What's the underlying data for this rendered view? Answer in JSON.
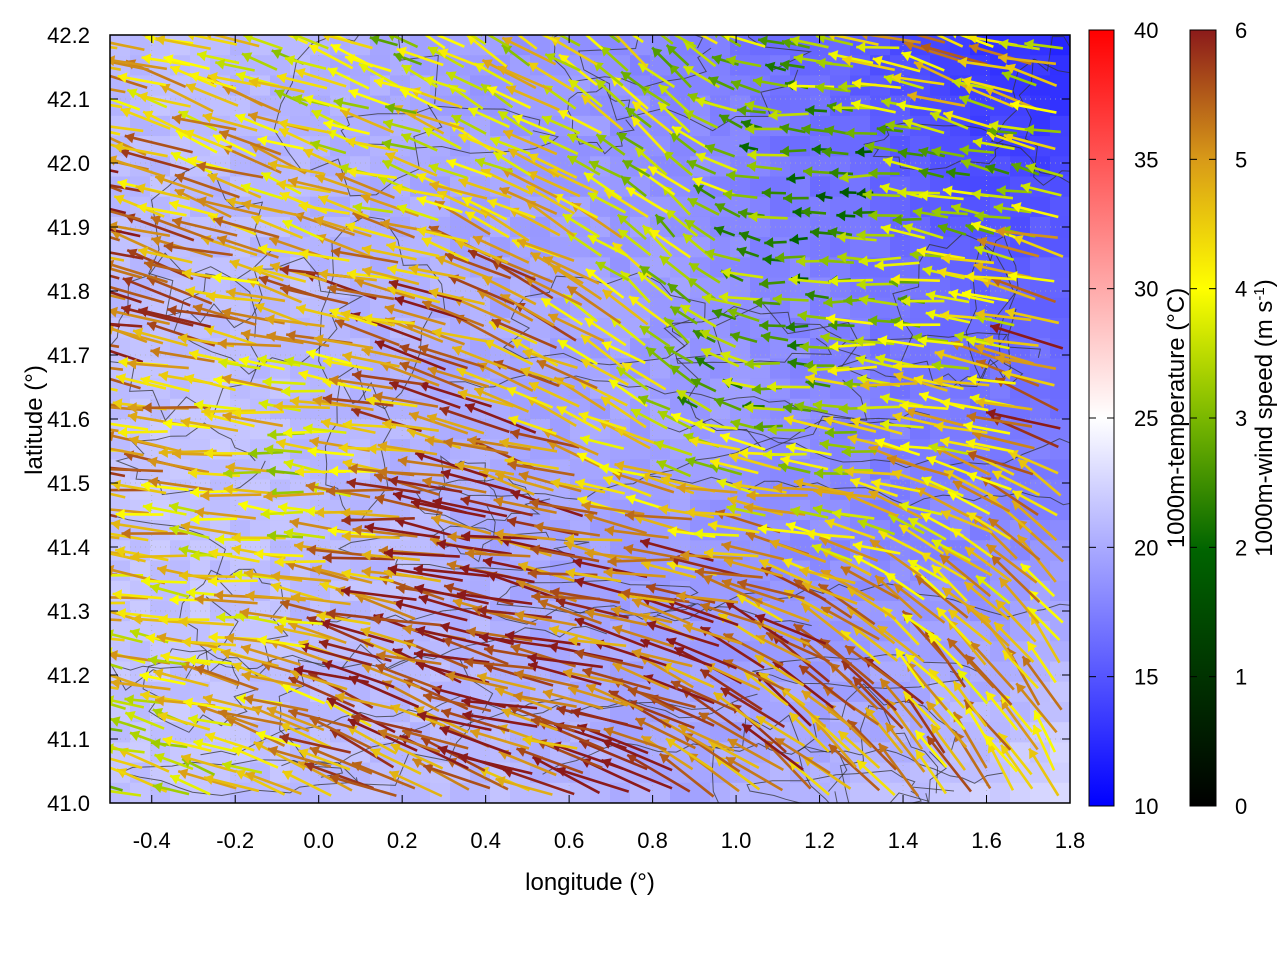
{
  "chart_data": {
    "type": "heatmap",
    "title": "",
    "xlabel": "longitude (°)",
    "ylabel": "latitude (°)",
    "xlim": [
      -0.5,
      1.8
    ],
    "ylim": [
      41.0,
      42.2
    ],
    "x_ticks": [
      "-0.4",
      "-0.2",
      "0.0",
      "0.2",
      "0.4",
      "0.6",
      "0.8",
      "1.0",
      "1.2",
      "1.4",
      "1.6",
      "1.8"
    ],
    "x_tick_values": [
      -0.4,
      -0.2,
      0.0,
      0.2,
      0.4,
      0.6,
      0.8,
      1.0,
      1.2,
      1.4,
      1.6,
      1.8
    ],
    "y_ticks": [
      "41.0",
      "41.1",
      "41.2",
      "41.3",
      "41.4",
      "41.5",
      "41.6",
      "41.7",
      "41.8",
      "41.9",
      "42.0",
      "42.1",
      "42.2"
    ],
    "y_tick_values": [
      41.0,
      41.1,
      41.2,
      41.3,
      41.4,
      41.5,
      41.6,
      41.7,
      41.8,
      41.9,
      42.0,
      42.1,
      42.2
    ],
    "grid": true,
    "colorbars": [
      {
        "label": "1000m-temperature (°C)",
        "range": [
          10,
          40
        ],
        "ticks": [
          "10",
          "15",
          "20",
          "25",
          "30",
          "35",
          "40"
        ],
        "tick_values": [
          10,
          15,
          20,
          25,
          30,
          35,
          40
        ],
        "colors": [
          "#0000ff",
          "#ffffff",
          "#ff0000"
        ]
      },
      {
        "label": "1000m-wind speed (m s-1)",
        "label_main": "1000m-wind speed (m s",
        "label_sup": "-1",
        "label_end": ")",
        "range": [
          0,
          6
        ],
        "ticks": [
          "0",
          "1",
          "2",
          "3",
          "4",
          "5",
          "6"
        ],
        "tick_values": [
          0,
          1,
          2,
          3,
          4,
          5,
          6
        ],
        "colors": [
          "#000000",
          "#006400",
          "#7ab800",
          "#ffff00",
          "#d89a18",
          "#8b1a1a"
        ]
      }
    ],
    "temperature_field": {
      "description_values": "approximate 1000 m temperature (°C) on a coarse lon/lat grid",
      "lon": [
        -0.5,
        -0.27,
        -0.04,
        0.19,
        0.42,
        0.65,
        0.88,
        1.11,
        1.34,
        1.57,
        1.8
      ],
      "lat": [
        42.2,
        42.0,
        41.8,
        41.6,
        41.4,
        41.2,
        41.0
      ],
      "values": [
        [
          21,
          21,
          20.5,
          20,
          19,
          18.5,
          17.5,
          16.5,
          15,
          13,
          12.5
        ],
        [
          21,
          21,
          20.5,
          20,
          19.5,
          19,
          18.5,
          17,
          16,
          14.5,
          14
        ],
        [
          21,
          21,
          21,
          20.5,
          20,
          19.5,
          19,
          18,
          17,
          16,
          16
        ],
        [
          21.5,
          21.5,
          21,
          20.5,
          20,
          19.5,
          19.5,
          18.5,
          17.5,
          17,
          17
        ],
        [
          21.5,
          21.5,
          21,
          21,
          20,
          19.5,
          19,
          18.5,
          18,
          18,
          18.5
        ],
        [
          21.5,
          21.5,
          21,
          21,
          20.5,
          20,
          19.5,
          19.5,
          19.5,
          20,
          21
        ],
        [
          21.5,
          21.5,
          21,
          21,
          21,
          20.5,
          20,
          20.5,
          21,
          22,
          23
        ]
      ]
    },
    "wind_field": {
      "description_values": "approximate 1000 m wind vectors: speed (m s-1) and direction the air moves toward (degrees, 0 = east, 90 = north)",
      "lon": [
        -0.5,
        -0.27,
        -0.04,
        0.19,
        0.42,
        0.65,
        0.88,
        1.11,
        1.34,
        1.57,
        1.8
      ],
      "lat": [
        42.2,
        42.0,
        41.8,
        41.6,
        41.4,
        41.2,
        41.0
      ],
      "speed": [
        [
          3.5,
          4,
          3.5,
          3,
          3.5,
          3.5,
          3,
          2.5,
          3.5,
          5,
          4
        ],
        [
          5,
          4.5,
          4,
          3.5,
          4,
          3.5,
          3,
          2,
          2,
          2.5,
          3
        ],
        [
          5.5,
          5,
          4.5,
          5,
          5,
          4.5,
          3,
          2,
          2.5,
          3,
          5
        ],
        [
          5,
          4.5,
          3.5,
          4.5,
          5.5,
          4.5,
          2.5,
          2.5,
          3.5,
          4,
          5.5
        ],
        [
          4.5,
          4,
          3.5,
          5,
          6,
          5.5,
          5,
          4.5,
          4,
          4,
          4.5
        ],
        [
          3.5,
          4,
          4.5,
          5.5,
          6,
          5.5,
          5.5,
          5.5,
          5,
          4.5,
          4.5
        ],
        [
          3,
          3.5,
          4,
          5,
          5.5,
          5,
          5.5,
          5,
          5,
          4.5,
          4.5
        ]
      ],
      "direction": [
        [
          170,
          165,
          160,
          155,
          150,
          145,
          140,
          170,
          175,
          160,
          165
        ],
        [
          165,
          160,
          160,
          165,
          155,
          150,
          140,
          175,
          180,
          165,
          170
        ],
        [
          165,
          165,
          165,
          165,
          160,
          150,
          135,
          180,
          180,
          170,
          165
        ],
        [
          170,
          175,
          175,
          170,
          165,
          155,
          150,
          175,
          175,
          170,
          160
        ],
        [
          175,
          175,
          175,
          175,
          170,
          170,
          175,
          170,
          165,
          150,
          135
        ],
        [
          170,
          170,
          165,
          160,
          165,
          170,
          160,
          150,
          140,
          130,
          125
        ],
        [
          165,
          160,
          160,
          155,
          160,
          160,
          150,
          140,
          135,
          125,
          120
        ]
      ]
    }
  }
}
